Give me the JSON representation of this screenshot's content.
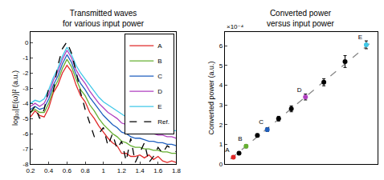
{
  "chart_data": [
    {
      "type": "line",
      "title": "Transmitted waves\nfor various input power",
      "ylabel": "log₁₀|E(ω)|² (a.u.)",
      "x": [
        0.2,
        0.25,
        0.3,
        0.35,
        0.4,
        0.45,
        0.5,
        0.55,
        0.6,
        0.65,
        0.7,
        0.75,
        0.8,
        0.85,
        0.9,
        0.95,
        1.0,
        1.05,
        1.1,
        1.15,
        1.2,
        1.25,
        1.3,
        1.35,
        1.4,
        1.45,
        1.5,
        1.55,
        1.6,
        1.65,
        1.7,
        1.75,
        1.8
      ],
      "xlim": [
        0.2,
        1.8
      ],
      "xticks": [
        0.2,
        0.4,
        0.6,
        0.8,
        1,
        1.2,
        1.4,
        1.6,
        1.8
      ],
      "ylim": [
        -8,
        0.7
      ],
      "yticks": [
        -8,
        -7,
        -6,
        -5,
        -4,
        -3,
        -2,
        -1,
        0
      ],
      "grid": false,
      "legend": "upper right",
      "series": [
        {
          "name": "A",
          "color": "#e02828",
          "line_style": "solid",
          "values": [
            -4.9,
            -4.5,
            -4.8,
            -4.9,
            -4.3,
            -3.3,
            -2.8,
            -2.0,
            -1.5,
            -1.9,
            -2.8,
            -3.5,
            -3.9,
            -4.6,
            -5.0,
            -5.5,
            -5.9,
            -6.3,
            -6.6,
            -6.8,
            -7.3,
            -7.3,
            -7.5,
            -7.5,
            -7.4,
            -7.6,
            -7.4,
            -7.7,
            -7.5,
            -7.8,
            -7.9,
            -7.8,
            -7.9
          ]
        },
        {
          "name": "B",
          "color": "#66b032",
          "line_style": "solid",
          "values": [
            -4.6,
            -4.4,
            -4.6,
            -4.6,
            -4.0,
            -3.1,
            -2.5,
            -1.7,
            -1.1,
            -1.6,
            -2.4,
            -3.1,
            -3.5,
            -4.1,
            -4.5,
            -5.0,
            -5.4,
            -5.7,
            -6.0,
            -6.2,
            -6.5,
            -6.6,
            -6.8,
            -6.9,
            -6.9,
            -7.0,
            -7.0,
            -7.1,
            -7.1,
            -7.2,
            -7.2,
            -7.3,
            -7.3
          ]
        },
        {
          "name": "C",
          "color": "#1f5fbf",
          "line_style": "solid",
          "values": [
            -4.4,
            -4.2,
            -4.4,
            -4.3,
            -3.7,
            -2.8,
            -2.2,
            -1.4,
            -0.8,
            -1.3,
            -2.1,
            -2.7,
            -3.1,
            -3.6,
            -4.0,
            -4.4,
            -4.8,
            -5.1,
            -5.4,
            -5.6,
            -5.9,
            -6.0,
            -6.2,
            -6.3,
            -6.3,
            -6.4,
            -6.5,
            -6.5,
            -6.6,
            -6.6,
            -6.7,
            -6.7,
            -6.8
          ]
        },
        {
          "name": "D",
          "color": "#b040c0",
          "line_style": "solid",
          "values": [
            -4.2,
            -4.0,
            -4.2,
            -4.0,
            -3.4,
            -2.5,
            -1.9,
            -1.1,
            -0.5,
            -1.0,
            -1.8,
            -2.3,
            -2.7,
            -3.2,
            -3.6,
            -4.0,
            -4.3,
            -4.6,
            -4.8,
            -5.0,
            -5.3,
            -5.4,
            -5.6,
            -5.7,
            -5.8,
            -5.9,
            -6.0,
            -6.0,
            -6.1,
            -6.1,
            -6.2,
            -6.2,
            -6.3
          ]
        },
        {
          "name": "E",
          "color": "#40c8e8",
          "line_style": "solid",
          "values": [
            -4.0,
            -3.8,
            -3.9,
            -3.7,
            -3.1,
            -2.3,
            -1.7,
            -0.9,
            -0.3,
            -0.8,
            -1.5,
            -2.0,
            -2.4,
            -2.8,
            -3.2,
            -3.6,
            -3.9,
            -4.1,
            -4.3,
            -4.5,
            -4.7,
            -4.9,
            -5.0,
            -5.2,
            -5.3,
            -5.4,
            -5.5,
            -5.5,
            -5.6,
            -5.7,
            -5.7,
            -5.8,
            -5.8
          ]
        },
        {
          "name": "Ref.",
          "color": "#000000",
          "line_style": "dash",
          "values": [
            -4.6,
            -4.2,
            -5.0,
            -4.4,
            -3.0,
            -3.2,
            -1.5,
            -0.4,
            0.05,
            -0.7,
            -1.9,
            -3.3,
            -4.4,
            -5.3,
            -6.2,
            -6.0,
            -5.6,
            -6.8,
            -6.0,
            -7.0,
            -6.5,
            -7.8,
            -6.3,
            -7.9,
            -7.2,
            -6.6,
            -7.9,
            -7.5,
            -6.9,
            -7.3,
            -6.8,
            -7.0,
            -7.2
          ]
        }
      ]
    },
    {
      "type": "scatter",
      "title": "Converted power\nversus input power",
      "ylabel": "Converted power (a.u.)",
      "annotations": [
        "×10⁻⁴"
      ],
      "xlim": [
        0,
        1.08
      ],
      "ylim": [
        0,
        6.7
      ],
      "yticks": [
        0,
        1,
        2,
        3,
        4,
        5,
        6
      ],
      "tick_labels": "y",
      "grid": false,
      "series": [
        {
          "type": "line",
          "line_style": "dash",
          "color": "#888888",
          "x": [
            0.04,
            1.03
          ],
          "values": [
            0.25,
            6.15
          ]
        },
        {
          "type": "scatter",
          "marker": "circle",
          "color": "#000000",
          "x": [
            0.1,
            0.23,
            0.38,
            0.47,
            0.7,
            0.85
          ],
          "values": [
            0.55,
            1.45,
            2.3,
            2.8,
            4.15,
            5.2
          ],
          "errors": [
            0.05,
            0.08,
            0.12,
            0.15,
            0.18,
            0.3
          ]
        },
        {
          "type": "scatter",
          "marker": "circle",
          "name": "A",
          "color": "#e02828",
          "x": [
            0.06
          ],
          "values": [
            0.35
          ],
          "errors": [
            0.05
          ]
        },
        {
          "type": "scatter",
          "marker": "circle",
          "name": "B",
          "color": "#66b032",
          "x": [
            0.15
          ],
          "values": [
            0.9
          ],
          "errors": [
            0.08
          ]
        },
        {
          "type": "scatter",
          "marker": "circle",
          "name": "C",
          "color": "#1f5fbf",
          "x": [
            0.3
          ],
          "values": [
            1.75
          ],
          "errors": [
            0.1
          ]
        },
        {
          "type": "scatter",
          "marker": "circle",
          "name": "D",
          "color": "#b040c0",
          "x": [
            0.57
          ],
          "values": [
            3.4
          ],
          "errors": [
            0.15
          ]
        },
        {
          "type": "scatter",
          "marker": "circle",
          "name": "E",
          "color": "#40c8e8",
          "x": [
            1.0
          ],
          "values": [
            6.05
          ],
          "errors": [
            0.2
          ]
        }
      ]
    }
  ]
}
